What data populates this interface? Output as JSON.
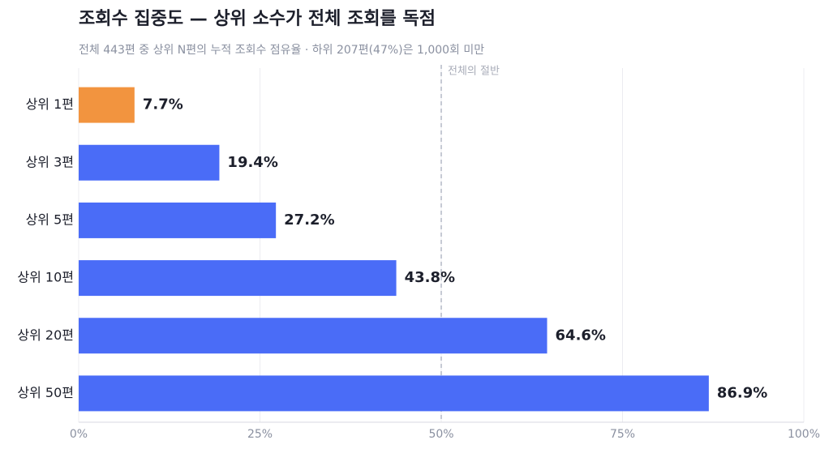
{
  "chart_data": {
    "type": "barh",
    "title": "조회수 집중도 — 상위 소수가 전체 조회를 독점",
    "subtitle": "전체 443편 중 상위 N편의 누적 조회수 점유율 · 하위 207편(47%)은 1,000회 미만",
    "categories": [
      "상위 1편",
      "상위 3편",
      "상위 5편",
      "상위 10편",
      "상위 20편",
      "상위 50편"
    ],
    "values": [
      7.7,
      19.4,
      27.2,
      43.8,
      64.6,
      86.9
    ],
    "value_labels": [
      "7.7%",
      "19.4%",
      "27.2%",
      "43.8%",
      "64.6%",
      "86.9%"
    ],
    "colors": [
      "#f2943f",
      "#4a6cf7",
      "#4a6cf7",
      "#4a6cf7",
      "#4a6cf7",
      "#4a6cf7"
    ],
    "xlim": [
      0,
      100
    ],
    "xticks": [
      {
        "value": 0,
        "label": "0%"
      },
      {
        "value": 25,
        "label": "25%"
      },
      {
        "value": 50,
        "label": "50%"
      },
      {
        "value": 75,
        "label": "75%"
      },
      {
        "value": 100,
        "label": "100%"
      }
    ],
    "grid": true,
    "reference_line": {
      "value": 50,
      "label": "전체의 절반"
    }
  }
}
